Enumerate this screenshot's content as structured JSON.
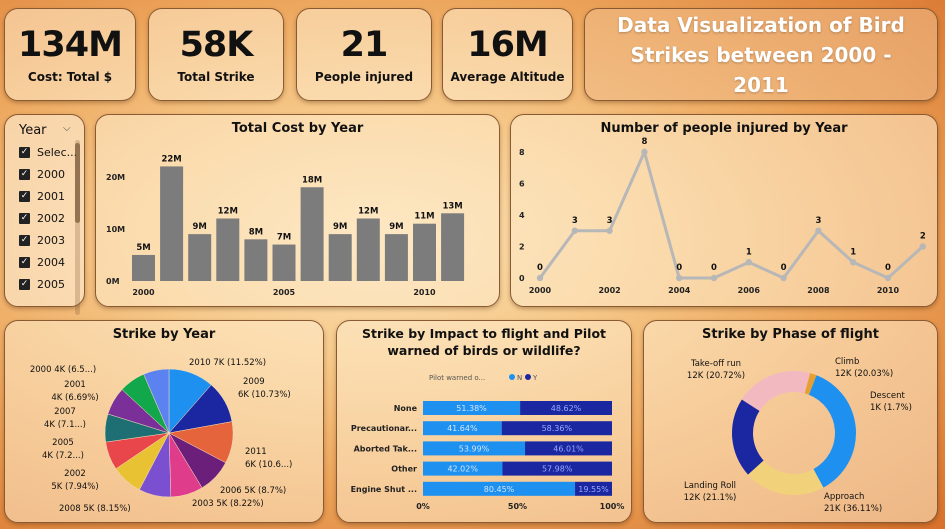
{
  "kpis": [
    {
      "value": "134M",
      "label": "Cost: Total $"
    },
    {
      "value": "58K",
      "label": "Total Strike"
    },
    {
      "value": "21",
      "label": "People injured"
    },
    {
      "value": "16M",
      "label": "Average Altitude"
    }
  ],
  "dashboard_title": "Data Visualization of Bird Strikes between 2000 - 2011",
  "slicer": {
    "title": "Year",
    "items": [
      "Selec...",
      "2000",
      "2001",
      "2002",
      "2003",
      "2004",
      "2005"
    ]
  },
  "colors": {
    "bar": "#7c7c7c",
    "line": "#b7b7b7",
    "light_blue": "#1e90f0",
    "dark_blue": "#1a27a0"
  },
  "chart_data": [
    {
      "type": "bar",
      "title": "Total Cost by Year",
      "categories": [
        "2000",
        "2001",
        "2002",
        "2003",
        "2004",
        "2005",
        "2006",
        "2007",
        "2008",
        "2009",
        "2010",
        "2011"
      ],
      "values": [
        5,
        22,
        9,
        12,
        8,
        7,
        18,
        9,
        12,
        9,
        11,
        13
      ],
      "data_labels": [
        "5M",
        "22M",
        "9M",
        "12M",
        "8M",
        "7M",
        "18M",
        "9M",
        "12M",
        "9M",
        "11M",
        "13M"
      ],
      "x_ticks": [
        "2000",
        "2005",
        "2010"
      ],
      "y_ticks": [
        "0M",
        "10M",
        "20M"
      ],
      "ylim": [
        0,
        24
      ]
    },
    {
      "type": "line",
      "title": "Number of people injured by Year",
      "x": [
        2000,
        2001,
        2002,
        2003,
        2004,
        2005,
        2006,
        2007,
        2008,
        2009,
        2010,
        2011
      ],
      "values": [
        0,
        3,
        3,
        8,
        0,
        0,
        1,
        0,
        3,
        1,
        0,
        2
      ],
      "x_ticks": [
        "2000",
        "2002",
        "2004",
        "2006",
        "2008",
        "2010"
      ],
      "y_ticks": [
        "0",
        "2",
        "4",
        "6",
        "8"
      ],
      "ylim": [
        0,
        8
      ]
    },
    {
      "type": "pie",
      "title": "Strike by Year",
      "slices": [
        {
          "label": "2010 7K (11.52%)",
          "value": 11.52,
          "color": "#1e90f0"
        },
        {
          "label": "2009 6K (10.73%)",
          "value": 10.73,
          "color": "#1a27a0"
        },
        {
          "label": "2011 6K (10.6...)",
          "value": 10.6,
          "color": "#e6643c"
        },
        {
          "label": "2006 5K (8.7%)",
          "value": 8.7,
          "color": "#6b1f7a"
        },
        {
          "label": "2003 5K (8.22%)",
          "value": 8.22,
          "color": "#e03c8c"
        },
        {
          "label": "2008 5K (8.15%)",
          "value": 8.15,
          "color": "#7a4fd0"
        },
        {
          "label": "2002 5K (7.94%)",
          "value": 7.94,
          "color": "#e8c232"
        },
        {
          "label": "2005 4K (7.2...)",
          "value": 7.2,
          "color": "#e8464a"
        },
        {
          "label": "2004 4K (7.1...)",
          "value": 7.1,
          "color": "#1d6f73"
        },
        {
          "label": "2007 4K (7.1...)",
          "value": 7.1,
          "color": "#7b2f98"
        },
        {
          "label": "2001 4K (6.69%)",
          "value": 6.69,
          "color": "#12a74b"
        },
        {
          "label": "2000 4K (6.5...)",
          "value": 6.5,
          "color": "#5b82f0"
        }
      ],
      "display_labels": [
        "2010 7K (11.52%)",
        "2009",
        "6K (10.73%)",
        "2011",
        "6K (10.6...)",
        "2006 5K (8.7%)",
        "2003 5K (8.22%)",
        "2008 5K (8.15%)",
        "2002",
        "5K (7.94%)",
        "2005",
        "4K (7.2...)",
        "2007",
        "4K (7.1...)",
        "2001",
        "4K (6.69%)",
        "2000 4K (6.5...)"
      ]
    },
    {
      "type": "bar",
      "orientation": "horizontal",
      "stacked": "100%",
      "title": "Strike by Impact to flight and Pilot warned of birds or wildlife?",
      "legend_title": "Pilot warned o...",
      "legend": [
        "N",
        "Y"
      ],
      "categories": [
        "None",
        "Precautionar...",
        "Aborted Tak...",
        "Other",
        "Engine Shut ..."
      ],
      "series": [
        {
          "name": "N",
          "values": [
            51.38,
            41.64,
            53.99,
            42.02,
            80.45
          ],
          "labels": [
            "51.38%",
            "41.64%",
            "53.99%",
            "42.02%",
            "80.45%"
          ]
        },
        {
          "name": "Y",
          "values": [
            48.62,
            58.36,
            46.01,
            57.98,
            19.55
          ],
          "labels": [
            "48.62%",
            "58.36%",
            "46.01%",
            "57.98%",
            "19.55%"
          ]
        }
      ],
      "x_ticks": [
        "0%",
        "50%",
        "100%"
      ]
    },
    {
      "type": "pie",
      "donut": true,
      "title": "Strike by Phase of flight",
      "slices": [
        {
          "name": "Approach",
          "value": 36.11,
          "color": "#1e90f0"
        },
        {
          "name": "Landing Roll",
          "value": 21.1,
          "color": "#f1d27a"
        },
        {
          "name": "Take-off run",
          "value": 20.72,
          "color": "#1a27a0"
        },
        {
          "name": "Climb",
          "value": 20.03,
          "color": "#f2b9c0"
        },
        {
          "name": "Descent",
          "value": 1.7,
          "color": "#e6a030"
        }
      ],
      "label_lines": [
        {
          "name": "Take-off run",
          "detail": "12K (20.72%)"
        },
        {
          "name": "Climb",
          "detail": "12K (20.03%)"
        },
        {
          "name": "Descent",
          "detail": "1K (1.7%)"
        },
        {
          "name": "Landing Roll",
          "detail": "12K (21.1%)"
        },
        {
          "name": "Approach",
          "detail": "21K (36.11%)"
        }
      ]
    }
  ]
}
